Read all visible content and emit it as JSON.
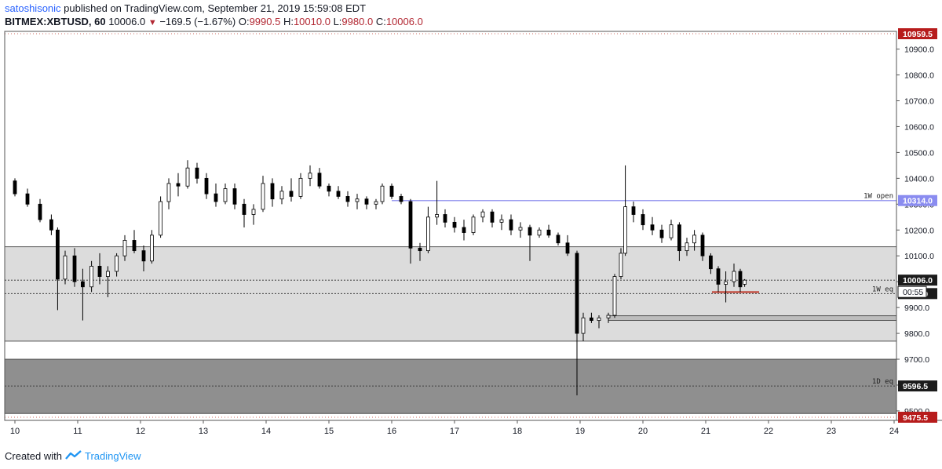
{
  "header": {
    "author": "satoshisonic",
    "published_text": "published on TradingView.com, September 21, 2019 15:59:08 EDT",
    "symbol": "BITMEX:XBTUSD, 60",
    "last": "10006.0",
    "change": "−169.5 (−1.67%)",
    "o_label": "O:",
    "o_value": "9990.5",
    "h_label": "H:",
    "h_value": "10010.0",
    "l_label": "L:",
    "l_value": "9980.0",
    "c_label": "C:",
    "c_value": "10006.0"
  },
  "footer": {
    "created_with": "Created with",
    "brand": "TradingView"
  },
  "colors": {
    "up": "#000000",
    "down": "#000000",
    "zone_light": "#dcdcdc",
    "zone_dark": "#8f8f8f",
    "weekly_open_line": "#9d9ef0",
    "red_marker": "#c0392b",
    "price_tag_red": "#b71c1c"
  },
  "chart_data": {
    "type": "candlestick",
    "title": "BITMEX:XBTUSD, 60",
    "ylim": [
      9475.5,
      10959.5
    ],
    "x_ticks": [
      "10",
      "11",
      "12",
      "13",
      "14",
      "15",
      "16",
      "17",
      "18",
      "19",
      "20",
      "21",
      "22",
      "23",
      "24"
    ],
    "x_tick_days": [
      10,
      11,
      12,
      13,
      14,
      15,
      16,
      17,
      18,
      19,
      20,
      21,
      22,
      23,
      24
    ],
    "y_ticks": [
      9500.0,
      9600.0,
      9700.0,
      9800.0,
      9900.0,
      10000.0,
      10100.0,
      10200.0,
      10300.0,
      10400.0,
      10500.0,
      10600.0,
      10700.0,
      10800.0,
      10900.0
    ],
    "y_tick_labels": [
      "9500.0",
      "9600.0",
      "9700.0",
      "9800.0",
      "9900.0",
      "10000.0",
      "10100.0",
      "10200.0",
      "10300.0",
      "10400.0",
      "10500.0",
      "10600.0",
      "10700.0",
      "10800.0",
      "10900.0"
    ],
    "price_tags": [
      {
        "value": 10959.5,
        "label": "10959.5",
        "style": "red"
      },
      {
        "value": 10314.0,
        "label": "10314.0",
        "style": "purple"
      },
      {
        "value": 10006.0,
        "label": "10006.0",
        "style": "dark"
      },
      {
        "value": 9954.0,
        "label": "9954.0",
        "style": "dark"
      },
      {
        "value": 9596.5,
        "label": "9596.5",
        "style": "dark"
      },
      {
        "value": 9475.5,
        "label": "9475.5",
        "style": "red"
      }
    ],
    "countdown": "00:55",
    "horizontal_lines": [
      {
        "name": "1W open",
        "value": 10314.0,
        "style": "solid",
        "color": "purple"
      },
      {
        "name": "1W eq",
        "value": 9954.0,
        "style": "dotted",
        "color": "black"
      },
      {
        "name": "1D eq",
        "value": 9596.5,
        "style": "dotted",
        "color": "black"
      },
      {
        "name": "",
        "value": 10006.0,
        "style": "dotted",
        "color": "black"
      },
      {
        "name": "",
        "value": 10959.5,
        "style": "dotted",
        "color": "red"
      },
      {
        "name": "",
        "value": 9475.5,
        "style": "dotted",
        "color": "red"
      }
    ],
    "zones": [
      {
        "shade": "light",
        "top": 10135,
        "bottom": 9770
      },
      {
        "shade": "dark",
        "top": 9700,
        "bottom": 9490
      }
    ],
    "small_boxes": [
      {
        "day_start": 19.45,
        "day_end": 21.0,
        "top": 9868,
        "bottom": 9850
      }
    ],
    "markers": [
      {
        "day_start": 21.1,
        "day_end": 21.85,
        "value": 9960,
        "color": "red"
      }
    ],
    "candles": [
      {
        "d": 10.0,
        "o": 10390,
        "h": 10400,
        "l": 10330,
        "c": 10340
      },
      {
        "d": 10.2,
        "o": 10340,
        "h": 10360,
        "l": 10290,
        "c": 10300
      },
      {
        "d": 10.4,
        "o": 10300,
        "h": 10320,
        "l": 10230,
        "c": 10240
      },
      {
        "d": 10.58,
        "o": 10240,
        "h": 10260,
        "l": 10180,
        "c": 10200
      },
      {
        "d": 10.68,
        "o": 10200,
        "h": 10210,
        "l": 9890,
        "c": 10010
      },
      {
        "d": 10.8,
        "o": 10010,
        "h": 10120,
        "l": 9990,
        "c": 10100
      },
      {
        "d": 10.95,
        "o": 10100,
        "h": 10130,
        "l": 9980,
        "c": 10000
      },
      {
        "d": 11.08,
        "o": 10000,
        "h": 10050,
        "l": 9850,
        "c": 9980
      },
      {
        "d": 11.22,
        "o": 9980,
        "h": 10080,
        "l": 9960,
        "c": 10060
      },
      {
        "d": 11.35,
        "o": 10060,
        "h": 10110,
        "l": 9990,
        "c": 10020
      },
      {
        "d": 11.48,
        "o": 10020,
        "h": 10060,
        "l": 9940,
        "c": 10040
      },
      {
        "d": 11.62,
        "o": 10040,
        "h": 10110,
        "l": 10020,
        "c": 10100
      },
      {
        "d": 11.75,
        "o": 10100,
        "h": 10180,
        "l": 10080,
        "c": 10160
      },
      {
        "d": 11.9,
        "o": 10160,
        "h": 10200,
        "l": 10110,
        "c": 10120
      },
      {
        "d": 12.05,
        "o": 10120,
        "h": 10140,
        "l": 10040,
        "c": 10080
      },
      {
        "d": 12.18,
        "o": 10080,
        "h": 10200,
        "l": 10070,
        "c": 10180
      },
      {
        "d": 12.32,
        "o": 10180,
        "h": 10330,
        "l": 10170,
        "c": 10310
      },
      {
        "d": 12.45,
        "o": 10310,
        "h": 10400,
        "l": 10280,
        "c": 10380
      },
      {
        "d": 12.6,
        "o": 10380,
        "h": 10420,
        "l": 10330,
        "c": 10370
      },
      {
        "d": 12.75,
        "o": 10370,
        "h": 10470,
        "l": 10360,
        "c": 10440
      },
      {
        "d": 12.9,
        "o": 10440,
        "h": 10460,
        "l": 10380,
        "c": 10400
      },
      {
        "d": 13.05,
        "o": 10400,
        "h": 10420,
        "l": 10320,
        "c": 10340
      },
      {
        "d": 13.2,
        "o": 10340,
        "h": 10380,
        "l": 10290,
        "c": 10310
      },
      {
        "d": 13.35,
        "o": 10310,
        "h": 10380,
        "l": 10300,
        "c": 10360
      },
      {
        "d": 13.5,
        "o": 10360,
        "h": 10380,
        "l": 10280,
        "c": 10300
      },
      {
        "d": 13.65,
        "o": 10300,
        "h": 10320,
        "l": 10210,
        "c": 10260
      },
      {
        "d": 13.8,
        "o": 10260,
        "h": 10300,
        "l": 10220,
        "c": 10280
      },
      {
        "d": 13.95,
        "o": 10280,
        "h": 10410,
        "l": 10270,
        "c": 10380
      },
      {
        "d": 14.1,
        "o": 10380,
        "h": 10400,
        "l": 10290,
        "c": 10320
      },
      {
        "d": 14.25,
        "o": 10320,
        "h": 10370,
        "l": 10300,
        "c": 10350
      },
      {
        "d": 14.4,
        "o": 10350,
        "h": 10400,
        "l": 10310,
        "c": 10330
      },
      {
        "d": 14.55,
        "o": 10330,
        "h": 10420,
        "l": 10320,
        "c": 10400
      },
      {
        "d": 14.7,
        "o": 10400,
        "h": 10450,
        "l": 10370,
        "c": 10420
      },
      {
        "d": 14.85,
        "o": 10420,
        "h": 10440,
        "l": 10360,
        "c": 10370
      },
      {
        "d": 15.0,
        "o": 10370,
        "h": 10380,
        "l": 10330,
        "c": 10350
      },
      {
        "d": 15.15,
        "o": 10350,
        "h": 10370,
        "l": 10320,
        "c": 10330
      },
      {
        "d": 15.3,
        "o": 10330,
        "h": 10350,
        "l": 10290,
        "c": 10310
      },
      {
        "d": 15.45,
        "o": 10310,
        "h": 10340,
        "l": 10280,
        "c": 10320
      },
      {
        "d": 15.6,
        "o": 10320,
        "h": 10330,
        "l": 10280,
        "c": 10300
      },
      {
        "d": 15.75,
        "o": 10300,
        "h": 10320,
        "l": 10280,
        "c": 10310
      },
      {
        "d": 15.85,
        "o": 10310,
        "h": 10380,
        "l": 10300,
        "c": 10370
      },
      {
        "d": 16.0,
        "o": 10370,
        "h": 10380,
        "l": 10320,
        "c": 10330
      },
      {
        "d": 16.15,
        "o": 10330,
        "h": 10340,
        "l": 10300,
        "c": 10310
      },
      {
        "d": 16.3,
        "o": 10310,
        "h": 10320,
        "l": 10070,
        "c": 10130
      },
      {
        "d": 16.45,
        "o": 10130,
        "h": 10150,
        "l": 10080,
        "c": 10120
      },
      {
        "d": 16.58,
        "o": 10120,
        "h": 10290,
        "l": 10110,
        "c": 10250
      },
      {
        "d": 16.72,
        "o": 10250,
        "h": 10390,
        "l": 10220,
        "c": 10260
      },
      {
        "d": 16.85,
        "o": 10260,
        "h": 10280,
        "l": 10210,
        "c": 10230
      },
      {
        "d": 17.0,
        "o": 10230,
        "h": 10250,
        "l": 10190,
        "c": 10210
      },
      {
        "d": 17.15,
        "o": 10210,
        "h": 10240,
        "l": 10160,
        "c": 10190
      },
      {
        "d": 17.3,
        "o": 10190,
        "h": 10260,
        "l": 10180,
        "c": 10250
      },
      {
        "d": 17.45,
        "o": 10250,
        "h": 10280,
        "l": 10230,
        "c": 10270
      },
      {
        "d": 17.6,
        "o": 10270,
        "h": 10280,
        "l": 10210,
        "c": 10230
      },
      {
        "d": 17.75,
        "o": 10230,
        "h": 10260,
        "l": 10200,
        "c": 10240
      },
      {
        "d": 17.9,
        "o": 10240,
        "h": 10260,
        "l": 10180,
        "c": 10200
      },
      {
        "d": 18.05,
        "o": 10200,
        "h": 10230,
        "l": 10170,
        "c": 10210
      },
      {
        "d": 18.2,
        "o": 10210,
        "h": 10220,
        "l": 10080,
        "c": 10180
      },
      {
        "d": 18.35,
        "o": 10180,
        "h": 10210,
        "l": 10170,
        "c": 10200
      },
      {
        "d": 18.5,
        "o": 10200,
        "h": 10220,
        "l": 10170,
        "c": 10180
      },
      {
        "d": 18.65,
        "o": 10180,
        "h": 10190,
        "l": 10140,
        "c": 10150
      },
      {
        "d": 18.8,
        "o": 10150,
        "h": 10180,
        "l": 10100,
        "c": 10110
      },
      {
        "d": 18.95,
        "o": 10110,
        "h": 10120,
        "l": 9560,
        "c": 9800
      },
      {
        "d": 19.05,
        "o": 9800,
        "h": 9880,
        "l": 9770,
        "c": 9860
      },
      {
        "d": 19.18,
        "o": 9860,
        "h": 9880,
        "l": 9840,
        "c": 9850
      },
      {
        "d": 19.3,
        "o": 9850,
        "h": 9870,
        "l": 9820,
        "c": 9860
      },
      {
        "d": 19.45,
        "o": 9860,
        "h": 9880,
        "l": 9840,
        "c": 9870
      },
      {
        "d": 19.55,
        "o": 9870,
        "h": 10030,
        "l": 9860,
        "c": 10020
      },
      {
        "d": 19.65,
        "o": 10020,
        "h": 10130,
        "l": 10010,
        "c": 10110
      },
      {
        "d": 19.72,
        "o": 10110,
        "h": 10450,
        "l": 10100,
        "c": 10290
      },
      {
        "d": 19.85,
        "o": 10290,
        "h": 10310,
        "l": 10230,
        "c": 10260
      },
      {
        "d": 20.0,
        "o": 10260,
        "h": 10280,
        "l": 10200,
        "c": 10220
      },
      {
        "d": 20.15,
        "o": 10220,
        "h": 10250,
        "l": 10180,
        "c": 10200
      },
      {
        "d": 20.3,
        "o": 10200,
        "h": 10220,
        "l": 10150,
        "c": 10170
      },
      {
        "d": 20.45,
        "o": 10170,
        "h": 10240,
        "l": 10160,
        "c": 10220
      },
      {
        "d": 20.58,
        "o": 10220,
        "h": 10230,
        "l": 10080,
        "c": 10120
      },
      {
        "d": 20.7,
        "o": 10120,
        "h": 10170,
        "l": 10100,
        "c": 10150
      },
      {
        "d": 20.82,
        "o": 10150,
        "h": 10200,
        "l": 10120,
        "c": 10180
      },
      {
        "d": 20.95,
        "o": 10180,
        "h": 10190,
        "l": 10080,
        "c": 10100
      },
      {
        "d": 21.08,
        "o": 10100,
        "h": 10110,
        "l": 10030,
        "c": 10050
      },
      {
        "d": 21.2,
        "o": 10050,
        "h": 10060,
        "l": 9960,
        "c": 9990
      },
      {
        "d": 21.32,
        "o": 9990,
        "h": 10040,
        "l": 9920,
        "c": 10000
      },
      {
        "d": 21.45,
        "o": 10000,
        "h": 10070,
        "l": 9980,
        "c": 10040
      },
      {
        "d": 21.55,
        "o": 10040,
        "h": 10050,
        "l": 9960,
        "c": 9980
      },
      {
        "d": 21.62,
        "o": 9990,
        "h": 10010,
        "l": 9980,
        "c": 10006
      }
    ]
  }
}
